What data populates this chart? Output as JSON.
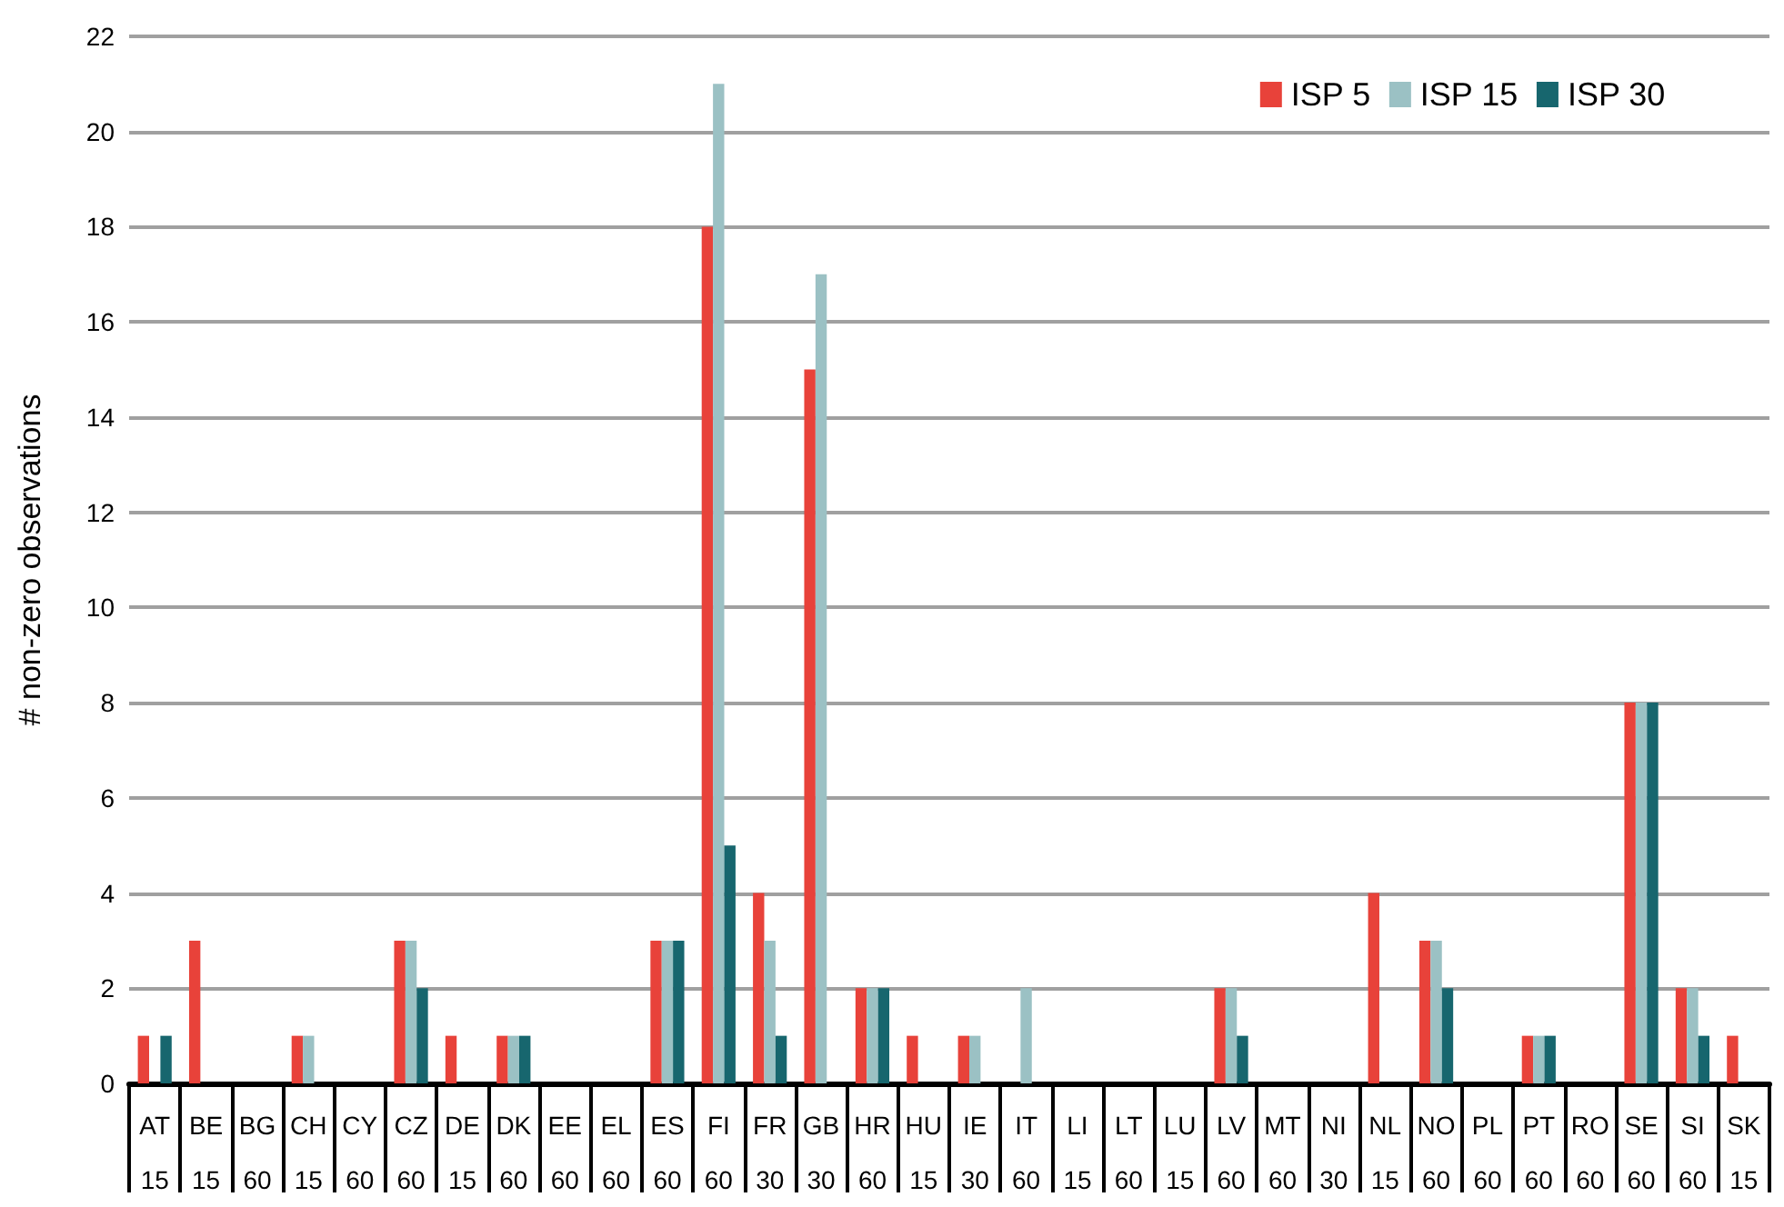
{
  "chart_data": {
    "type": "bar",
    "ylabel": "# non-zero observations",
    "categories": [
      "AT\n15",
      "BE\n15",
      "BG\n60",
      "CH\n15",
      "CY\n60",
      "CZ\n60",
      "DE\n15",
      "DK\n60",
      "EE\n60",
      "EL\n60",
      "ES\n60",
      "FI\n60",
      "FR\n30",
      "GB\n30",
      "HR\n60",
      "HU\n15",
      "IE\n30",
      "IT\n60",
      "LI\n15",
      "LT\n60",
      "LU\n15",
      "LV\n60",
      "MT\n60",
      "NI\n30",
      "NL\n15",
      "NO\n60",
      "PL\n60",
      "PT\n60",
      "RO\n60",
      "SE\n60",
      "SI\n60",
      "SK\n15"
    ],
    "series": [
      {
        "name": "ISP 5",
        "color": "#e8423a",
        "values": [
          1,
          3,
          0,
          1,
          0,
          3,
          1,
          1,
          0,
          0,
          3,
          18,
          4,
          15,
          2,
          1,
          1,
          0,
          0,
          0,
          0,
          2,
          0,
          0,
          4,
          3,
          0,
          1,
          0,
          8,
          2,
          1
        ]
      },
      {
        "name": "ISP 15",
        "color": "#9bc1c4",
        "values": [
          0,
          0,
          0,
          1,
          0,
          3,
          0,
          1,
          0,
          0,
          3,
          21,
          3,
          17,
          2,
          0,
          1,
          2,
          0,
          0,
          0,
          2,
          0,
          0,
          0,
          3,
          0,
          1,
          0,
          8,
          2,
          0
        ]
      },
      {
        "name": "ISP 30",
        "color": "#17666e",
        "values": [
          1,
          0,
          0,
          0,
          0,
          2,
          0,
          1,
          0,
          0,
          3,
          5,
          1,
          0,
          2,
          0,
          0,
          0,
          0,
          0,
          0,
          1,
          0,
          0,
          0,
          2,
          0,
          1,
          0,
          8,
          1,
          0
        ]
      }
    ],
    "ylim": [
      0,
      22
    ],
    "yticks": [
      0,
      2,
      4,
      6,
      8,
      10,
      12,
      14,
      16,
      18,
      20,
      22
    ],
    "grid": "y",
    "legend": "top right"
  }
}
